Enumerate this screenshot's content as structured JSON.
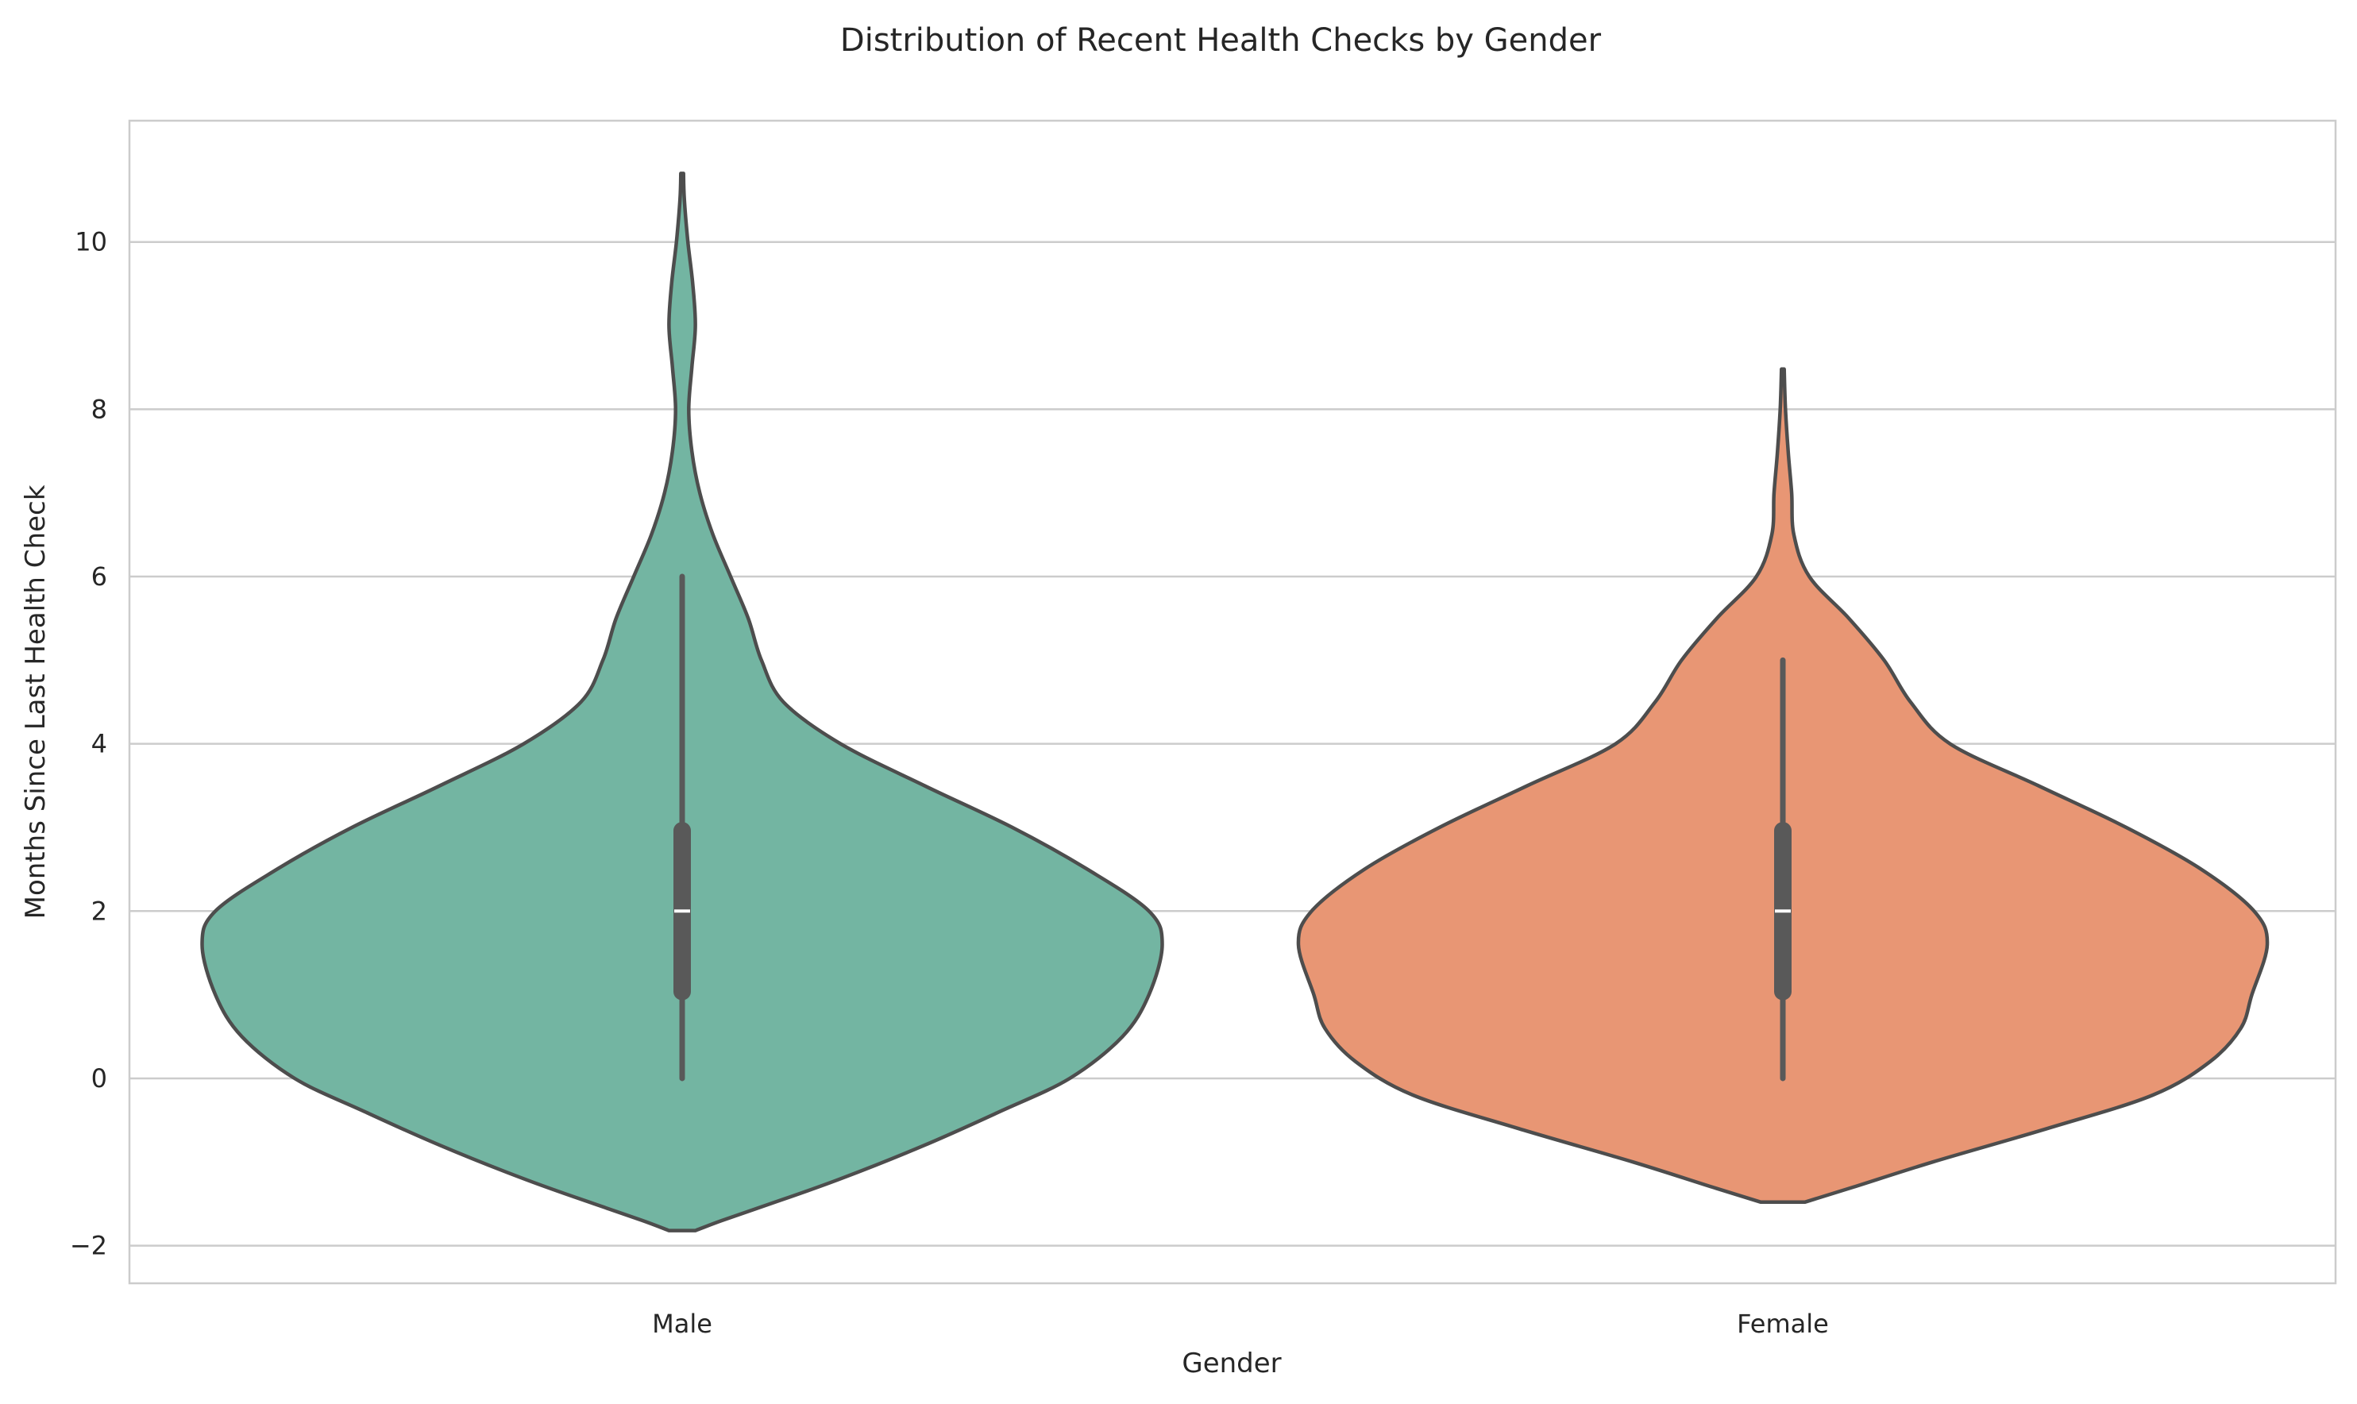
{
  "chart_data": {
    "type": "violin",
    "title": "Distribution of Recent Health Checks by Gender",
    "xlabel": "Gender",
    "ylabel": "Months Since Last Health Check",
    "categories": [
      "Male",
      "Female"
    ],
    "ylim": [
      -2.45,
      11.45
    ],
    "yticks": [
      -2,
      0,
      2,
      4,
      6,
      8,
      10
    ],
    "ytick_labels": [
      "−2",
      "0",
      "2",
      "4",
      "6",
      "8",
      "10"
    ],
    "grid": "horizontal",
    "series": [
      {
        "category": "Male",
        "color": "#73b5a2",
        "min": 0,
        "q1": 1,
        "median": 2,
        "q3": 3,
        "max": 6,
        "density_range": [
          -1.82,
          10.82
        ],
        "density_profile": [
          [
            -1.82,
            0.03
          ],
          [
            -1.7,
            0.09
          ],
          [
            -1.5,
            0.2
          ],
          [
            -1.2,
            0.36
          ],
          [
            -0.8,
            0.55
          ],
          [
            -0.4,
            0.72
          ],
          [
            0,
            0.88
          ],
          [
            0.5,
            1.0
          ],
          [
            1.0,
            1.06
          ],
          [
            1.6,
            1.09
          ],
          [
            2.0,
            1.06
          ],
          [
            2.5,
            0.92
          ],
          [
            3.0,
            0.75
          ],
          [
            3.5,
            0.55
          ],
          [
            4.0,
            0.36
          ],
          [
            4.5,
            0.23
          ],
          [
            5.0,
            0.18
          ],
          [
            5.5,
            0.15
          ],
          [
            6.0,
            0.11
          ],
          [
            6.5,
            0.07
          ],
          [
            7.0,
            0.04
          ],
          [
            7.5,
            0.022
          ],
          [
            8.0,
            0.015
          ],
          [
            8.5,
            0.022
          ],
          [
            9.0,
            0.03
          ],
          [
            9.5,
            0.024
          ],
          [
            10.0,
            0.013
          ],
          [
            10.5,
            0.005
          ],
          [
            10.82,
            0.003
          ]
        ]
      },
      {
        "category": "Female",
        "color": "#e89674",
        "min": 0,
        "q1": 1,
        "median": 2,
        "q3": 3,
        "max": 5,
        "density_range": [
          -1.48,
          8.48
        ],
        "density_profile": [
          [
            -1.48,
            0.05
          ],
          [
            -1.3,
            0.16
          ],
          [
            -1.0,
            0.34
          ],
          [
            -0.6,
            0.6
          ],
          [
            -0.2,
            0.84
          ],
          [
            0.2,
            0.97
          ],
          [
            0.6,
            1.04
          ],
          [
            1.0,
            1.065
          ],
          [
            1.6,
            1.1
          ],
          [
            2.0,
            1.07
          ],
          [
            2.5,
            0.95
          ],
          [
            3.0,
            0.78
          ],
          [
            3.5,
            0.58
          ],
          [
            4.0,
            0.38
          ],
          [
            4.5,
            0.29
          ],
          [
            5.0,
            0.23
          ],
          [
            5.5,
            0.15
          ],
          [
            6.0,
            0.06
          ],
          [
            6.5,
            0.025
          ],
          [
            7.0,
            0.02
          ],
          [
            7.5,
            0.012
          ],
          [
            8.0,
            0.006
          ],
          [
            8.48,
            0.003
          ]
        ]
      }
    ]
  }
}
